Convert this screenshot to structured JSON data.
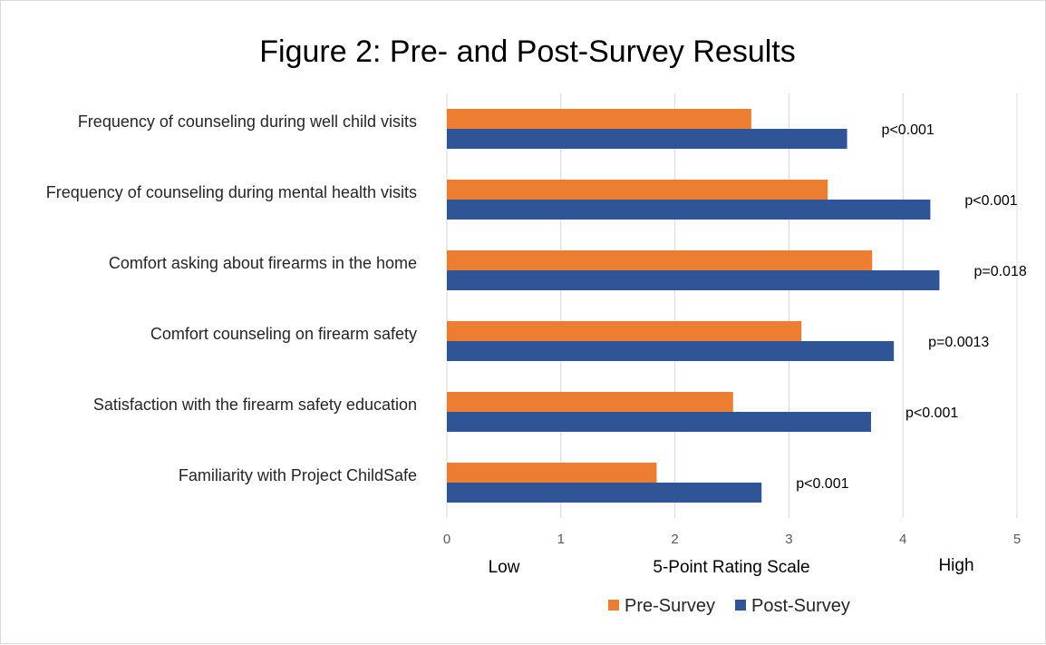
{
  "chart_data": {
    "type": "bar",
    "orientation": "horizontal",
    "title": "Figure 2: Pre- and Post-Survey Results",
    "categories": [
      "Frequency of counseling during well child visits",
      "Frequency of counseling during mental health visits",
      "Comfort asking about firearms in the home",
      "Comfort counseling on firearm safety",
      "Satisfaction with the firearm safety education",
      "Familiarity with Project ChildSafe"
    ],
    "series": [
      {
        "name": "Pre-Survey",
        "color": "#ed7d31",
        "values": [
          2.67,
          3.34,
          3.73,
          3.11,
          2.51,
          1.84
        ]
      },
      {
        "name": "Post-Survey",
        "color": "#2f5597",
        "values": [
          3.51,
          4.24,
          4.32,
          3.92,
          3.72,
          2.76
        ]
      }
    ],
    "annotations": [
      "p<0.001",
      "p<0.001",
      "p=0.018",
      "p=0.0013",
      "p<0.001",
      "p<0.001"
    ],
    "xlim": [
      0,
      5
    ],
    "xticks": [
      0,
      1,
      2,
      3,
      4,
      5
    ],
    "xlabel": "5-Point Rating Scale",
    "scale_low_label": "Low",
    "scale_high_label": "High",
    "grid": true,
    "legend_position": "bottom"
  }
}
